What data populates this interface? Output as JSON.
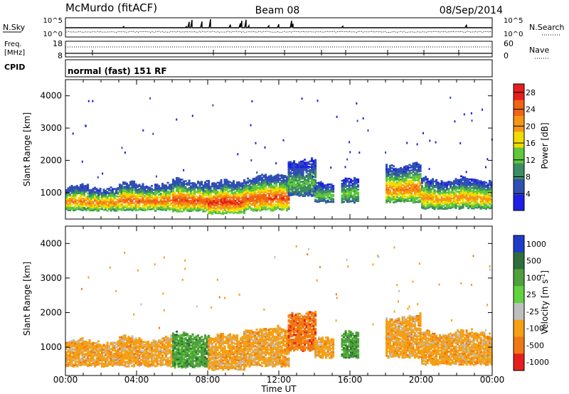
{
  "header": {
    "station": "McMurdo (fitACF)",
    "beam": "Beam 08",
    "date": "08/Sep/2014"
  },
  "mode": {
    "label": "normal (fast) 151 RF"
  },
  "strip_panels": {
    "nsky": {
      "left_label": "N.Sky",
      "right_label": "N.Search",
      "left_ticks": [
        "10^5",
        "10^0"
      ],
      "right_ticks": [
        "10^5",
        "10^0"
      ]
    },
    "freq": {
      "left_label_line1": "Freq.",
      "left_label_line2": "[MHz]",
      "right_label": "Nave",
      "left_ticks": [
        "18",
        "8"
      ],
      "right_ticks": [
        "60",
        "0"
      ]
    },
    "cpid": {
      "label": "CPID"
    }
  },
  "chart_data": [
    {
      "type": "heatmap",
      "title": "",
      "xlabel": "",
      "ylabel": "Slant Range [km]",
      "x_ticks": [
        "00:00",
        "04:00",
        "08:00",
        "12:00",
        "16:00",
        "20:00",
        "00:00"
      ],
      "xlim_hours": [
        0,
        24
      ],
      "y_ticks": [
        1000,
        2000,
        3000,
        4000
      ],
      "ylim": [
        180,
        4500
      ],
      "colorbar": {
        "label": "Power [dB]",
        "ticks": [
          "4",
          "8",
          "12",
          "16",
          "20",
          "24",
          "28"
        ],
        "range": [
          0,
          30
        ],
        "colors": [
          "#1e1ee6",
          "#2f4fb4",
          "#3c8c64",
          "#5fc83c",
          "#f0dc00",
          "#f59614",
          "#f06414",
          "#e61e1e"
        ]
      },
      "backscatter_bands": [
        {
          "t_start": 0.0,
          "t_end": 3.0,
          "range_low": 450,
          "range_high": 1150,
          "peak_db": 24
        },
        {
          "t_start": 3.0,
          "t_end": 6.0,
          "range_low": 450,
          "range_high": 1250,
          "peak_db": 26
        },
        {
          "t_start": 6.0,
          "t_end": 8.0,
          "range_low": 420,
          "range_high": 1350,
          "peak_db": 28
        },
        {
          "t_start": 8.0,
          "t_end": 10.0,
          "range_low": 350,
          "range_high": 1300,
          "peak_db": 30
        },
        {
          "t_start": 10.0,
          "t_end": 12.5,
          "range_low": 450,
          "range_high": 1500,
          "peak_db": 28
        },
        {
          "t_start": 12.5,
          "t_end": 14.0,
          "range_low": 900,
          "range_high": 2000,
          "peak_db": 12
        },
        {
          "t_start": 14.0,
          "t_end": 15.0,
          "range_low": 700,
          "range_high": 1200,
          "peak_db": 14
        },
        {
          "t_start": 15.5,
          "t_end": 16.5,
          "range_low": 700,
          "range_high": 1450,
          "peak_db": 14
        },
        {
          "t_start": 18.0,
          "t_end": 20.0,
          "range_low": 700,
          "range_high": 1850,
          "peak_db": 24
        },
        {
          "t_start": 20.0,
          "t_end": 24.0,
          "range_low": 500,
          "range_high": 1400,
          "peak_db": 22
        }
      ]
    },
    {
      "type": "heatmap",
      "title": "",
      "xlabel": "Time UT",
      "ylabel": "Slant Range [km]",
      "x_ticks": [
        "00:00",
        "04:00",
        "08:00",
        "12:00",
        "16:00",
        "20:00",
        "00:00"
      ],
      "xlim_hours": [
        0,
        24
      ],
      "y_ticks": [
        1000,
        2000,
        3000,
        4000
      ],
      "ylim": [
        180,
        4500
      ],
      "colorbar": {
        "label": "Velocity [m s^-1]",
        "ticks": [
          "1000",
          "500",
          "100",
          "25",
          "-25",
          "-100",
          "-500",
          "-1000"
        ],
        "colors": [
          "#1e3cc8",
          "#2d6e3c",
          "#50a03c",
          "#5fd23c",
          "#bebebe",
          "#f5a014",
          "#f07814",
          "#e61e1e"
        ]
      },
      "backscatter_bands": [
        {
          "t_start": 0.0,
          "t_end": 3.0,
          "range_low": 450,
          "range_high": 1150,
          "dominant_velocity": "-100"
        },
        {
          "t_start": 3.0,
          "t_end": 6.0,
          "range_low": 450,
          "range_high": 1250,
          "dominant_velocity": "-100"
        },
        {
          "t_start": 6.0,
          "t_end": 8.0,
          "range_low": 420,
          "range_high": 1350,
          "dominant_velocity": "100"
        },
        {
          "t_start": 8.0,
          "t_end": 10.0,
          "range_low": 350,
          "range_high": 1300,
          "dominant_velocity": "-100"
        },
        {
          "t_start": 10.0,
          "t_end": 12.5,
          "range_low": 450,
          "range_high": 1500,
          "dominant_velocity": "-100"
        },
        {
          "t_start": 12.5,
          "t_end": 14.0,
          "range_low": 900,
          "range_high": 2000,
          "dominant_velocity": "-500"
        },
        {
          "t_start": 14.0,
          "t_end": 15.0,
          "range_low": 700,
          "range_high": 1200,
          "dominant_velocity": "-100"
        },
        {
          "t_start": 15.5,
          "t_end": 16.5,
          "range_low": 700,
          "range_high": 1450,
          "dominant_velocity": "100"
        },
        {
          "t_start": 18.0,
          "t_end": 20.0,
          "range_low": 700,
          "range_high": 1850,
          "dominant_velocity": "-100"
        },
        {
          "t_start": 20.0,
          "t_end": 24.0,
          "range_low": 500,
          "range_high": 1400,
          "dominant_velocity": "-100"
        }
      ]
    }
  ]
}
